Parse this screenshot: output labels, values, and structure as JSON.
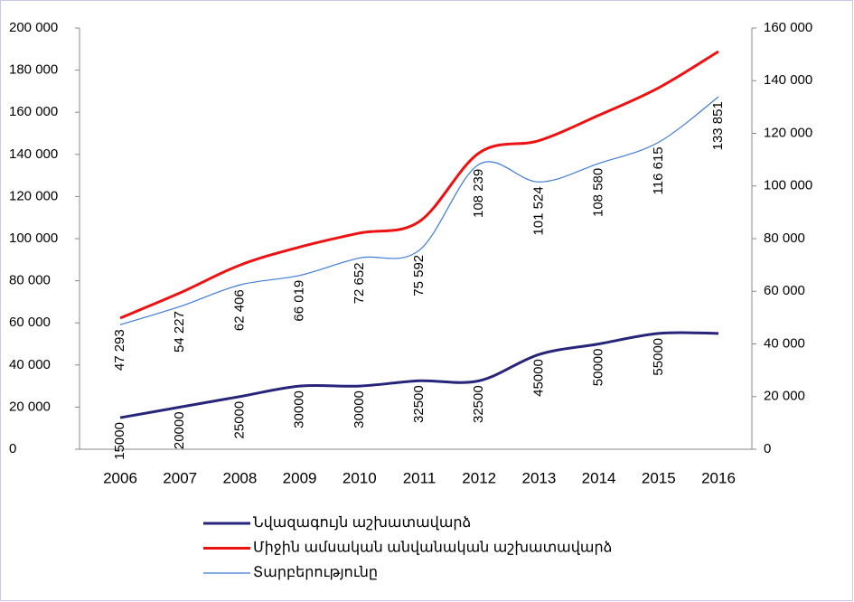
{
  "chart_data": {
    "type": "line",
    "categories": [
      "2006",
      "2007",
      "2008",
      "2009",
      "2010",
      "2011",
      "2012",
      "2013",
      "2014",
      "2015",
      "2016"
    ],
    "series": [
      {
        "name": "Նվազագույն աշխատավարձ",
        "color": "#27257a",
        "axis": "y",
        "values": [
          15000,
          20000,
          25000,
          30000,
          30000,
          32500,
          32500,
          45000,
          50000,
          55000,
          55000
        ],
        "value_labels": [
          "15000",
          "20000",
          "25000",
          "30000",
          "30000",
          "32500",
          "32500",
          "45000",
          "50000",
          "55000",
          null
        ]
      },
      {
        "name": "Միջին ամսական անվանական աշխատավարձ",
        "color": "#ee1111",
        "axis": "y",
        "values": [
          62293,
          74227,
          87406,
          96019,
          102652,
          108092,
          140739,
          146524,
          158580,
          171615,
          188851
        ]
      },
      {
        "name": "Տարբերությունը",
        "color": "#3f7ad8",
        "axis": "y2",
        "values": [
          47293,
          54227,
          62406,
          66019,
          72652,
          75592,
          108239,
          101524,
          108580,
          116615,
          133851
        ],
        "value_labels": [
          "47 293",
          "54 227",
          "62 406",
          "66 019",
          "72 652",
          "75 592",
          "108 239",
          "101 524",
          "108 580",
          "116 615",
          "133 851"
        ]
      }
    ],
    "ylim": [
      0,
      200000
    ],
    "yticks": [
      0,
      {
        "value": 20000,
        "label": "20 000"
      },
      {
        "value": 40000,
        "label": "40 000"
      },
      {
        "value": 60000,
        "label": "60 000"
      },
      {
        "value": 80000,
        "label": "80 000"
      },
      {
        "value": 100000,
        "label": "100 000"
      },
      {
        "value": 120000,
        "label": "120 000"
      },
      {
        "value": 140000,
        "label": "140 000"
      },
      {
        "value": 160000,
        "label": "160 000"
      },
      {
        "value": 180000,
        "label": "180 000"
      },
      {
        "value": 200000,
        "label": "200 000"
      }
    ],
    "y2lim": [
      0,
      160000
    ],
    "y2ticks": [
      0,
      {
        "value": 20000,
        "label": "20 000"
      },
      {
        "value": 40000,
        "label": "40 000"
      },
      {
        "value": 60000,
        "label": "60 000"
      },
      {
        "value": 80000,
        "label": "80 000"
      },
      {
        "value": 100000,
        "label": "100 000"
      },
      {
        "value": 120000,
        "label": "120 000"
      },
      {
        "value": 140000,
        "label": "140 000"
      },
      {
        "value": 160000,
        "label": "160 000"
      }
    ],
    "legend": "bottom"
  }
}
